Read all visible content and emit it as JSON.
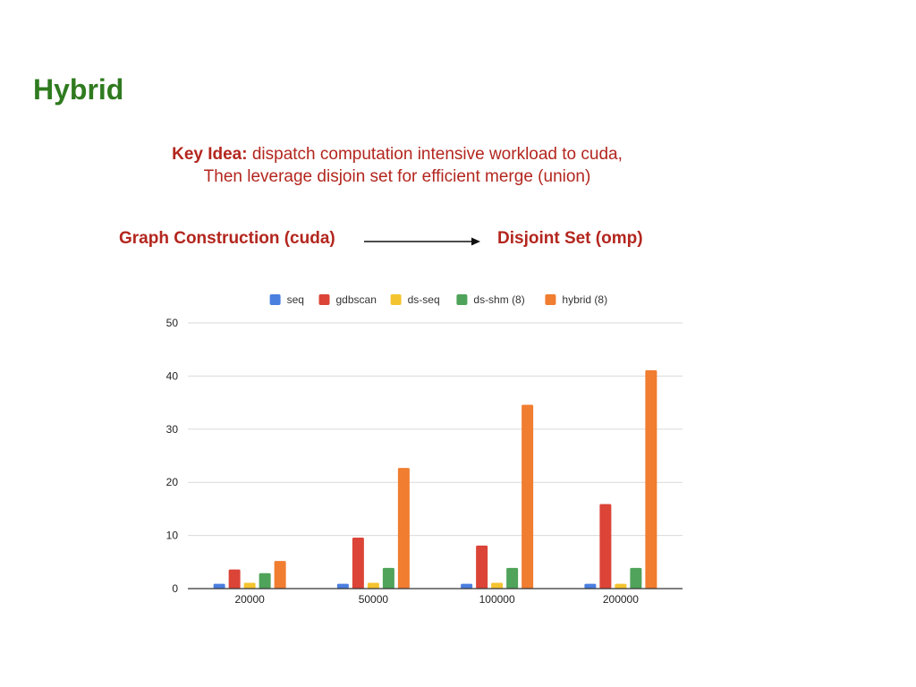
{
  "slide": {
    "title": "Hybrid",
    "key_idea_label": "Key Idea:",
    "key_idea_line1": " dispatch computation intensive workload to cuda,",
    "key_idea_line2": "Then leverage disjoin set for efficient merge (union)",
    "flow_left": "Graph Construction (cuda)",
    "flow_right": "Disjoint Set (omp)"
  },
  "colors": {
    "title": "#2f7a1f",
    "accent": "#b3261e"
  },
  "chart_data": {
    "type": "bar",
    "title": "",
    "xlabel": "",
    "ylabel": "",
    "categories": [
      "20000",
      "50000",
      "100000",
      "200000"
    ],
    "ylim": [
      0,
      50
    ],
    "yticks": [
      0,
      10,
      20,
      30,
      40,
      50
    ],
    "grid": true,
    "legend_position": "top",
    "series": [
      {
        "name": "seq",
        "color": "#4a7fe0",
        "values": [
          0.9,
          0.9,
          0.9,
          0.9
        ]
      },
      {
        "name": "gdbscan",
        "color": "#db4437",
        "values": [
          3.6,
          9.6,
          8.1,
          15.9
        ]
      },
      {
        "name": "ds-seq",
        "color": "#f4c430",
        "values": [
          1.1,
          1.1,
          1.1,
          0.9
        ]
      },
      {
        "name": "ds-shm (8)",
        "color": "#4fa35a",
        "values": [
          2.9,
          3.9,
          3.9,
          3.9
        ]
      },
      {
        "name": "hybrid (8)",
        "color": "#f07d30",
        "values": [
          5.2,
          22.7,
          34.6,
          41.1
        ]
      }
    ]
  }
}
